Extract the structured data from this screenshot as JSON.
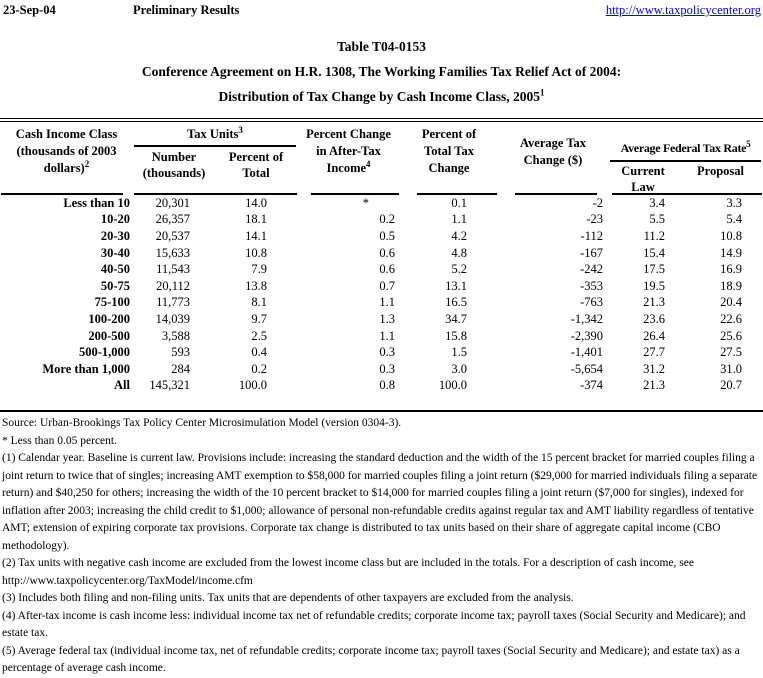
{
  "page": {
    "date": "23-Sep-04",
    "status": "Preliminary Results",
    "url": "http://www.taxpolicycenter.org",
    "link_color": "#0000ee"
  },
  "title": {
    "line1": "Table T04-0153",
    "line2": "Conference Agreement on H.R. 1308, The Working Families Tax Relief Act of 2004:",
    "line3": "Distribution of Tax Change by Cash Income Class, 2005",
    "line3_sup": "1"
  },
  "table": {
    "headers": {
      "income_class": "Cash Income Class\n(thousands of 2003\ndollars)",
      "income_class_sup": "2",
      "tax_units": "Tax Units",
      "tax_units_sup": "3",
      "number": "Number\n(thousands)",
      "percent_of_total": "Percent of\nTotal",
      "pct_change_after_tax": "Percent Change\nin After-Tax\nIncome",
      "pct_change_after_tax_sup": "4",
      "pct_total_tax_change": "Percent of\nTotal Tax\nChange",
      "avg_tax_change": "Average Tax\nChange ($)",
      "avg_federal_tax_rate": "Average Federal Tax Rate",
      "avg_federal_tax_rate_sup": "5",
      "current_law": "Current Law",
      "proposal": "Proposal"
    },
    "rows": [
      [
        "Less than 10",
        "20,301",
        "14.0",
        "*",
        "0.1",
        "-2",
        "3.4",
        "3.3"
      ],
      [
        "10-20",
        "26,357",
        "18.1",
        "0.2",
        "1.1",
        "-23",
        "5.5",
        "5.4"
      ],
      [
        "20-30",
        "20,537",
        "14.1",
        "0.5",
        "4.2",
        "-112",
        "11.2",
        "10.8"
      ],
      [
        "30-40",
        "15,633",
        "10.8",
        "0.6",
        "4.8",
        "-167",
        "15.4",
        "14.9"
      ],
      [
        "40-50",
        "11,543",
        "7.9",
        "0.6",
        "5.2",
        "-242",
        "17.5",
        "16.9"
      ],
      [
        "50-75",
        "20,112",
        "13.8",
        "0.7",
        "13.1",
        "-353",
        "19.5",
        "18.9"
      ],
      [
        "75-100",
        "11,773",
        "8.1",
        "1.1",
        "16.5",
        "-763",
        "21.3",
        "20.4"
      ],
      [
        "100-200",
        "14,039",
        "9.7",
        "1.3",
        "34.7",
        "-1,342",
        "23.6",
        "22.6"
      ],
      [
        "200-500",
        "3,588",
        "2.5",
        "1.1",
        "15.8",
        "-2,390",
        "26.4",
        "25.6"
      ],
      [
        "500-1,000",
        "593",
        "0.4",
        "0.3",
        "1.5",
        "-1,401",
        "27.7",
        "27.5"
      ],
      [
        "More than 1,000",
        "284",
        "0.2",
        "0.3",
        "3.0",
        "-5,654",
        "31.2",
        "31.0"
      ],
      [
        "All",
        "145,321",
        "100.0",
        "0.8",
        "100.0",
        "-374",
        "21.3",
        "20.7"
      ]
    ]
  },
  "footnotes": [
    "Source: Urban-Brookings Tax Policy Center Microsimulation Model (version 0304-3).",
    "* Less than 0.05 percent.",
    "(1) Calendar year. Baseline is current law. Provisions include: increasing the standard deduction and the width of the 15 percent bracket for married couples filing a joint return to twice that of singles; increasing AMT exemption to $58,000 for married couples filing a joint return ($29,000 for married individuals filing a separate return) and $40,250 for others;  increasing the width of the 10 percent bracket to $14,000 for married couples filing a joint return ($7,000 for singles), indexed for inflation after 2003; increasing the child credit to $1,000; allowance of personal non-refundable credits against regular tax and AMT liability regardless of tentative AMT; extension of expiring corporate tax provisions.  Corporate tax change is distributed to tax units based on their share of aggregate capital income (CBO methodology).",
    "(2) Tax units with negative cash income are excluded from the lowest income class but are included in the totals. For a description of cash income, see http://www.taxpolicycenter.org/TaxModel/income.cfm",
    "(3) Includes both filing and non-filing units.  Tax units that are dependents of other taxpayers are excluded from the analysis.",
    "(4) After-tax income is cash income less: individual income tax net of refundable credits; corporate income tax; payroll taxes (Social Security and Medicare); and estate tax.",
    "(5) Average federal tax (individual income tax, net of refundable credits; corporate income tax; payroll taxes (Social Security and Medicare); and estate tax) as a percentage of average cash income."
  ]
}
